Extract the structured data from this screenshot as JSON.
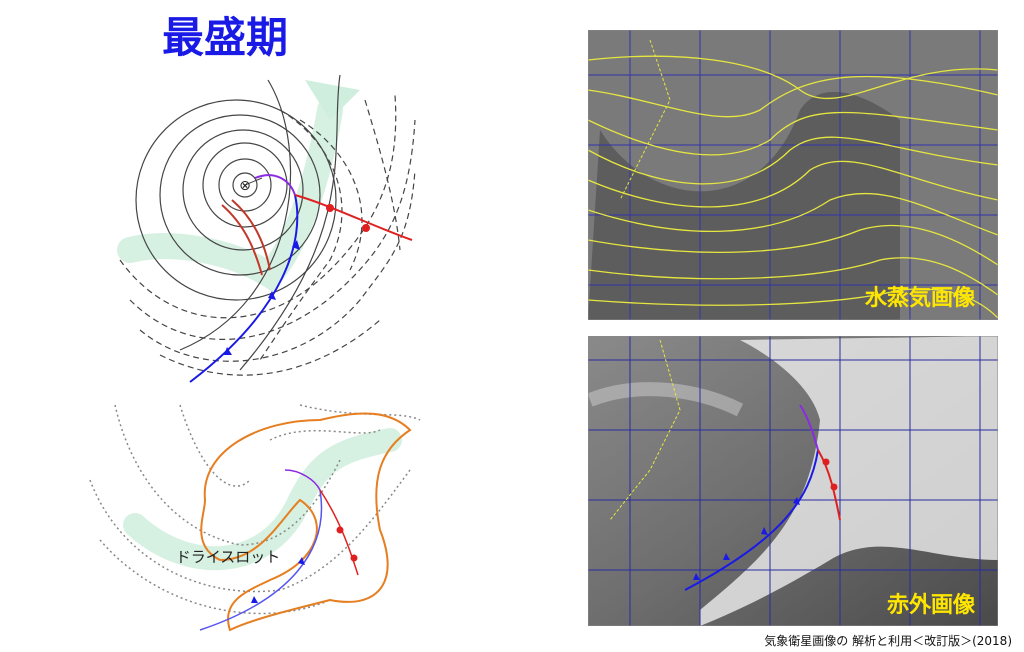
{
  "title": "最盛期",
  "diagram_bottom": {
    "label": "ドライスロット"
  },
  "images": [
    {
      "label": "水蒸気画像"
    },
    {
      "label": "赤外画像"
    }
  ],
  "source": "気象衛星画像の 解析と利用＜改訂版＞(2018)"
}
